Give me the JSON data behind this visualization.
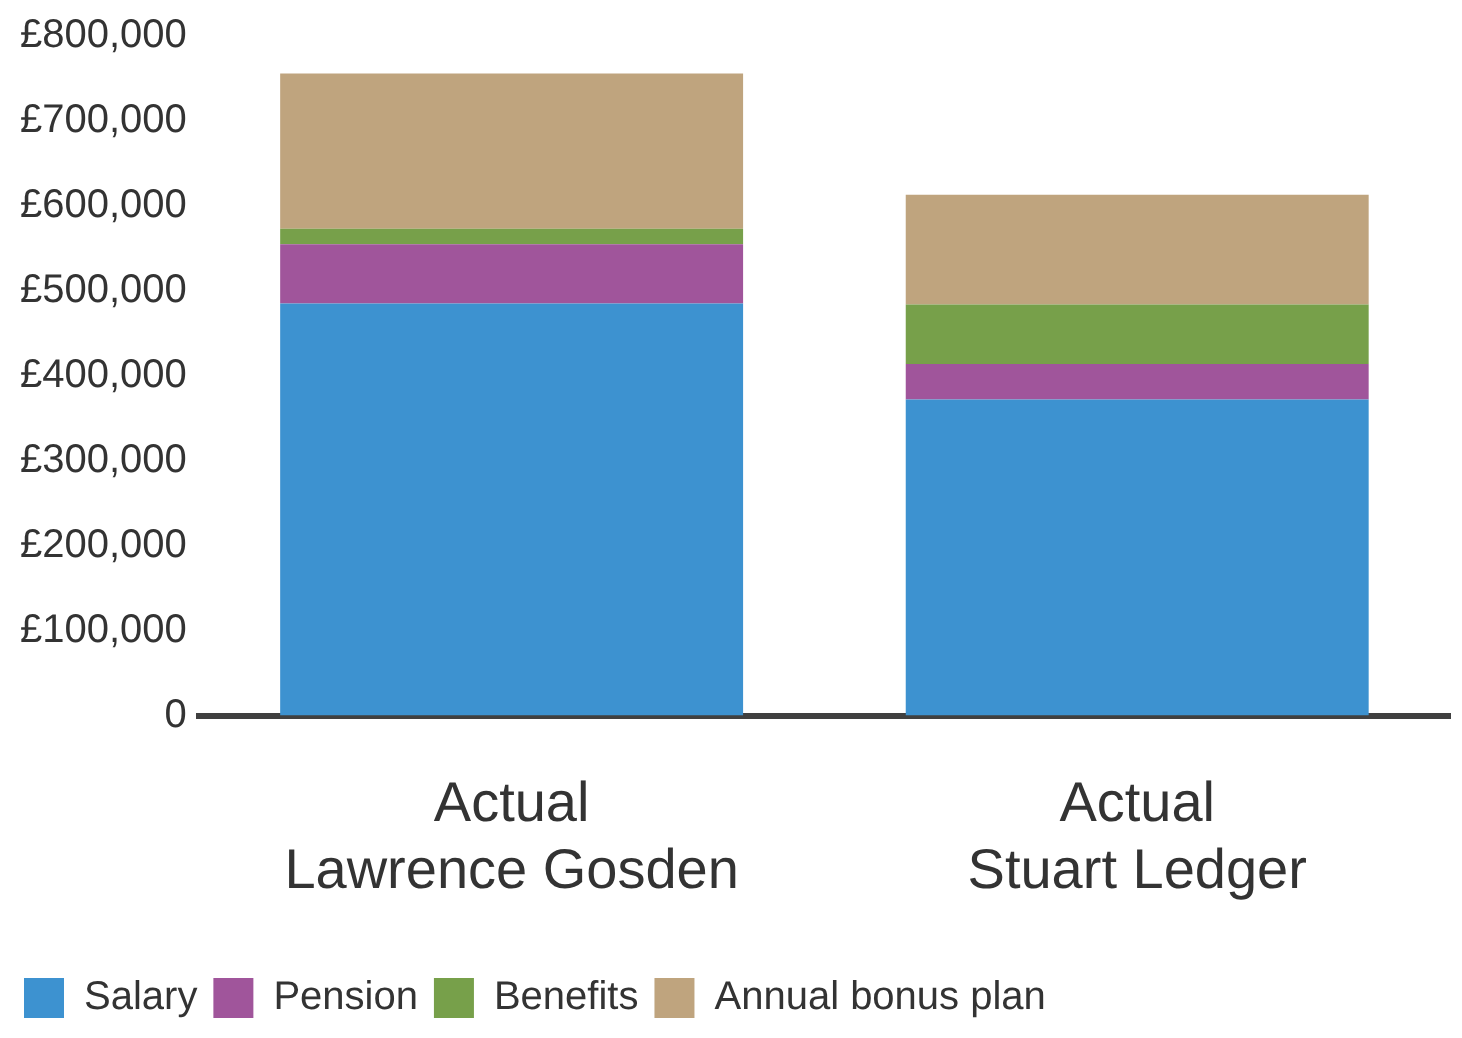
{
  "chart_data": {
    "type": "bar",
    "stacked": true,
    "categories": [
      "Actual\nLawrence Gosden",
      "Actual\nStuart Ledger"
    ],
    "series": [
      {
        "name": "Salary",
        "color": "#3d92d0",
        "values": [
          485000,
          372000
        ]
      },
      {
        "name": "Pension",
        "color": "#a0559b",
        "values": [
          70000,
          42000
        ]
      },
      {
        "name": "Benefits",
        "color": "#77a04a",
        "values": [
          18000,
          70000
        ]
      },
      {
        "name": "Annual bonus plan",
        "color": "#bfa47e",
        "values": [
          183000,
          129000
        ]
      }
    ],
    "ylim": [
      0,
      800000
    ],
    "yticks": [
      {
        "value": 0,
        "label": "0"
      },
      {
        "value": 100000,
        "label": "£100,000"
      },
      {
        "value": 200000,
        "label": "£200,000"
      },
      {
        "value": 300000,
        "label": "£300,000"
      },
      {
        "value": 400000,
        "label": "£400,000"
      },
      {
        "value": 500000,
        "label": "£500,000"
      },
      {
        "value": 600000,
        "label": "£600,000"
      },
      {
        "value": 700000,
        "label": "£700,000"
      },
      {
        "value": 800000,
        "label": "£800,000"
      }
    ],
    "grid": false,
    "legend": "bottom left"
  }
}
